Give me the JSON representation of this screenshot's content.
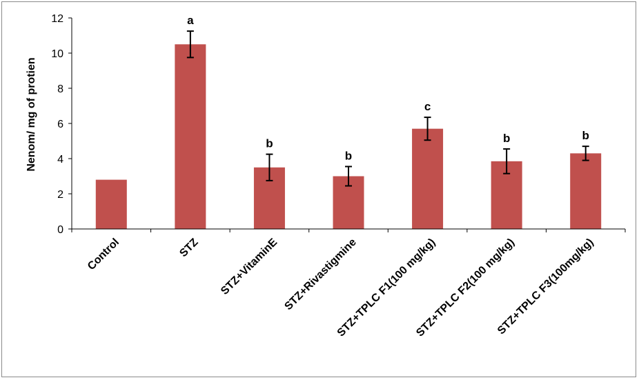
{
  "chart_data": {
    "type": "bar",
    "title": "",
    "xlabel": "",
    "ylabel": "Nenom/ mg of protien",
    "ylim": [
      0,
      12
    ],
    "yticks": [
      0,
      2,
      4,
      6,
      8,
      10,
      12
    ],
    "grid": false,
    "bar_color": "#C0504D",
    "categories": [
      "Control",
      "STZ",
      "STZ+VitaminE",
      "STZ+Rivastigmine",
      "STZ+TPLC F1(100 mg/kg)",
      "STZ+TPLC F2(100 mg/kg)",
      "STZ+TPLC F3(100mg/kg)"
    ],
    "values": [
      2.8,
      10.5,
      3.5,
      3.0,
      5.7,
      3.85,
      4.3
    ],
    "errors": [
      0,
      0.75,
      0.75,
      0.55,
      0.65,
      0.7,
      0.4
    ],
    "significance": [
      "",
      "a",
      "b",
      "b",
      "c",
      "b",
      "b"
    ]
  }
}
